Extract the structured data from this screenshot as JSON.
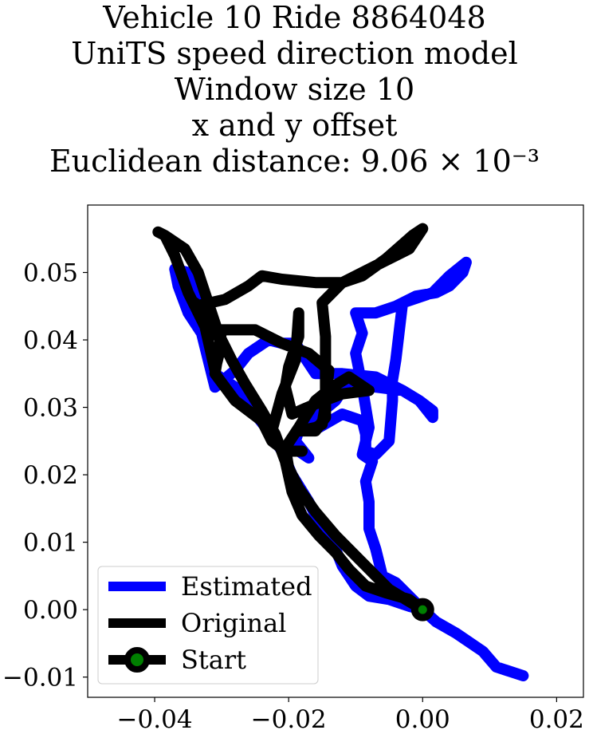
{
  "chart_data": {
    "type": "line",
    "title_lines": [
      "Vehicle 10 Ride 8864048",
      "UniTS speed direction model",
      "Window size 10",
      "x and y offset",
      "Euclidean distance: 9.06 × 10⁻³"
    ],
    "xlim": [
      -0.05,
      0.024
    ],
    "ylim": [
      -0.013,
      0.06
    ],
    "xticks": [
      -0.04,
      -0.02,
      0.0,
      0.02
    ],
    "xtick_labels": [
      "−0.04",
      "−0.02",
      "0.00",
      "0.02"
    ],
    "yticks": [
      -0.01,
      0.0,
      0.01,
      0.02,
      0.03,
      0.04,
      0.05
    ],
    "ytick_labels": [
      "−0.01",
      "0.00",
      "0.01",
      "0.02",
      "0.03",
      "0.04",
      "0.05"
    ],
    "grid": false,
    "legend_position": "lower-left",
    "legend": [
      "Estimated",
      "Original",
      "Start"
    ],
    "series": [
      {
        "name": "Estimated",
        "color": "#0000ff",
        "points": [
          [
            0.015,
            -0.0098
          ],
          [
            0.011,
            -0.0085
          ],
          [
            0.009,
            -0.0062
          ],
          [
            0.005,
            -0.0035
          ],
          [
            0.002,
            -0.0018
          ],
          [
            0.0,
            0.0
          ],
          [
            -0.002,
            0.002
          ],
          [
            -0.004,
            0.004
          ],
          [
            -0.006,
            0.005
          ],
          [
            -0.007,
            0.009
          ],
          [
            -0.008,
            0.012
          ],
          [
            -0.008,
            0.016
          ],
          [
            -0.0085,
            0.019
          ],
          [
            -0.0075,
            0.022
          ],
          [
            -0.009,
            0.023
          ],
          [
            -0.008,
            0.027
          ],
          [
            -0.009,
            0.033
          ],
          [
            -0.01,
            0.038
          ],
          [
            -0.009,
            0.041
          ],
          [
            -0.01,
            0.044
          ],
          [
            -0.007,
            0.044
          ],
          [
            -0.004,
            0.045
          ],
          [
            -0.001,
            0.0465
          ],
          [
            0.002,
            0.047
          ],
          [
            0.004,
            0.048
          ],
          [
            0.006,
            0.05
          ],
          [
            0.0065,
            0.0515
          ],
          [
            0.004,
            0.0495
          ],
          [
            0.0015,
            0.047
          ],
          [
            -0.0015,
            0.046
          ],
          [
            -0.003,
            0.0455
          ],
          [
            -0.004,
            0.037
          ],
          [
            -0.0045,
            0.034
          ],
          [
            -0.0045,
            0.031
          ],
          [
            -0.005,
            0.025
          ],
          [
            -0.007,
            0.023
          ],
          [
            -0.0085,
            0.0235
          ],
          [
            -0.0085,
            0.026
          ],
          [
            -0.009,
            0.028
          ],
          [
            -0.012,
            0.029
          ],
          [
            -0.0155,
            0.027
          ],
          [
            -0.0185,
            0.0265
          ],
          [
            -0.019,
            0.025
          ],
          [
            -0.017,
            0.0225
          ],
          [
            -0.0185,
            0.0235
          ],
          [
            -0.019,
            0.025
          ],
          [
            -0.0185,
            0.0265
          ],
          [
            -0.013,
            0.031
          ],
          [
            -0.011,
            0.034
          ],
          [
            -0.007,
            0.033
          ],
          [
            -0.003,
            0.0325
          ],
          [
            -0.0005,
            0.031
          ],
          [
            0.0015,
            0.0285
          ],
          [
            0.0015,
            0.0295
          ],
          [
            -0.0005,
            0.031
          ],
          [
            -0.003,
            0.0325
          ],
          [
            -0.007,
            0.0345
          ],
          [
            -0.012,
            0.035
          ],
          [
            -0.016,
            0.035
          ],
          [
            -0.019,
            0.0395
          ],
          [
            -0.021,
            0.0395
          ],
          [
            -0.023,
            0.04
          ],
          [
            -0.026,
            0.038
          ],
          [
            -0.028,
            0.0355
          ],
          [
            -0.031,
            0.033
          ],
          [
            -0.032,
            0.037
          ],
          [
            -0.033,
            0.041
          ],
          [
            -0.035,
            0.044
          ],
          [
            -0.0365,
            0.048
          ],
          [
            -0.037,
            0.0505
          ],
          [
            -0.035,
            0.05
          ],
          [
            -0.034,
            0.047
          ],
          [
            -0.033,
            0.043
          ],
          [
            -0.032,
            0.038
          ],
          [
            -0.031,
            0.035
          ],
          [
            -0.028,
            0.033
          ],
          [
            -0.025,
            0.029
          ],
          [
            -0.023,
            0.0265
          ],
          [
            -0.021,
            0.0235
          ],
          [
            -0.0195,
            0.02
          ],
          [
            -0.017,
            0.016
          ],
          [
            -0.015,
            0.012
          ],
          [
            -0.013,
            0.009
          ],
          [
            -0.012,
            0.0065
          ],
          [
            -0.01,
            0.0035
          ],
          [
            -0.008,
            0.002
          ],
          [
            -0.005,
            0.0015
          ],
          [
            -0.002,
            0.0005
          ],
          [
            0.0,
            0.0
          ]
        ]
      },
      {
        "name": "Original",
        "color": "#000000",
        "points": [
          [
            0.0,
            0.0
          ],
          [
            -0.005,
            0.003
          ],
          [
            -0.009,
            0.007
          ],
          [
            -0.013,
            0.011
          ],
          [
            -0.016,
            0.0145
          ],
          [
            -0.0185,
            0.018
          ],
          [
            -0.02,
            0.021
          ],
          [
            -0.0205,
            0.024
          ],
          [
            -0.0185,
            0.027
          ],
          [
            -0.016,
            0.031
          ],
          [
            -0.0135,
            0.033
          ],
          [
            -0.011,
            0.0345
          ],
          [
            -0.008,
            0.0325
          ],
          [
            -0.012,
            0.032
          ],
          [
            -0.016,
            0.0305
          ],
          [
            -0.0195,
            0.029
          ],
          [
            -0.0205,
            0.033
          ],
          [
            -0.02,
            0.036
          ],
          [
            -0.0185,
            0.0405
          ],
          [
            -0.0185,
            0.044
          ],
          [
            -0.019,
            0.037
          ],
          [
            -0.021,
            0.032
          ],
          [
            -0.0225,
            0.0265
          ],
          [
            -0.0215,
            0.0245
          ],
          [
            -0.0205,
            0.0235
          ],
          [
            -0.018,
            0.0235
          ],
          [
            -0.0205,
            0.0235
          ],
          [
            -0.0225,
            0.025
          ],
          [
            -0.024,
            0.028
          ],
          [
            -0.028,
            0.031
          ],
          [
            -0.031,
            0.035
          ],
          [
            -0.0305,
            0.038
          ],
          [
            -0.03,
            0.0415
          ],
          [
            -0.025,
            0.0415
          ],
          [
            -0.021,
            0.0395
          ],
          [
            -0.017,
            0.038
          ],
          [
            -0.014,
            0.0355
          ],
          [
            -0.0145,
            0.0305
          ],
          [
            -0.015,
            0.0275
          ],
          [
            -0.016,
            0.027
          ],
          [
            -0.0185,
            0.0265
          ],
          [
            -0.016,
            0.0265
          ],
          [
            -0.0145,
            0.0285
          ],
          [
            -0.0145,
            0.034
          ],
          [
            -0.0145,
            0.0405
          ],
          [
            -0.015,
            0.0455
          ],
          [
            -0.012,
            0.0485
          ],
          [
            -0.01,
            0.0495
          ],
          [
            -0.006,
            0.0515
          ],
          [
            -0.002,
            0.0535
          ],
          [
            0.0,
            0.0565
          ],
          [
            -0.0015,
            0.0555
          ],
          [
            -0.0055,
            0.052
          ],
          [
            -0.009,
            0.0495
          ],
          [
            -0.012,
            0.0485
          ],
          [
            -0.016,
            0.0485
          ],
          [
            -0.021,
            0.049
          ],
          [
            -0.024,
            0.0495
          ],
          [
            -0.026,
            0.048
          ],
          [
            -0.0295,
            0.046
          ],
          [
            -0.034,
            0.045
          ],
          [
            -0.034,
            0.0455
          ],
          [
            -0.0315,
            0.0425
          ],
          [
            -0.03,
            0.0395
          ],
          [
            -0.0305,
            0.0375
          ],
          [
            -0.031,
            0.0355
          ],
          [
            -0.0325,
            0.042
          ],
          [
            -0.035,
            0.047
          ],
          [
            -0.037,
            0.0525
          ],
          [
            -0.0385,
            0.0555
          ],
          [
            -0.0395,
            0.056
          ],
          [
            -0.0385,
            0.0555
          ],
          [
            -0.0355,
            0.0535
          ],
          [
            -0.0335,
            0.05
          ],
          [
            -0.0325,
            0.047
          ],
          [
            -0.0315,
            0.044
          ],
          [
            -0.0305,
            0.041
          ],
          [
            -0.0285,
            0.037
          ],
          [
            -0.0265,
            0.0335
          ],
          [
            -0.024,
            0.0295
          ],
          [
            -0.022,
            0.026
          ],
          [
            -0.0205,
            0.022
          ],
          [
            -0.0195,
            0.0175
          ],
          [
            -0.018,
            0.014
          ],
          [
            -0.0155,
            0.011
          ],
          [
            -0.013,
            0.0085
          ],
          [
            -0.011,
            0.006
          ],
          [
            -0.0085,
            0.0035
          ],
          [
            -0.0055,
            0.0025
          ],
          [
            -0.002,
            0.0015
          ],
          [
            0.0,
            0.0
          ]
        ]
      }
    ],
    "start_point": {
      "name": "Start",
      "x": 0.0,
      "y": 0.0,
      "edge_color": "#000000",
      "face_color": "#008000"
    }
  }
}
